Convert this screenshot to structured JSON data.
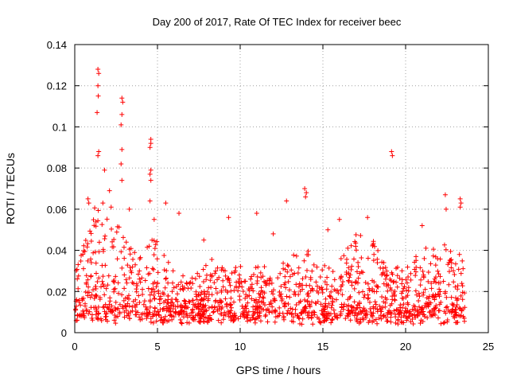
{
  "chart_data": {
    "type": "scatter",
    "title": "Day 200 of 2017, Rate Of TEC Index for receiver beec",
    "xlabel": "GPS time / hours",
    "ylabel": "ROTI / TECUs",
    "xlim": [
      0,
      25
    ],
    "ylim": [
      0,
      0.14
    ],
    "x_ticks": [
      0,
      5,
      10,
      15,
      20,
      25
    ],
    "y_ticks": [
      0,
      0.02,
      0.04,
      0.06,
      0.08,
      0.1,
      0.12,
      0.14
    ],
    "x_tick_labels": [
      "0",
      "5",
      "10",
      "15",
      "20",
      "25"
    ],
    "y_tick_labels": [
      "0",
      "0.02",
      "0.04",
      "0.06",
      "0.08",
      "0.1",
      "0.12",
      "0.14"
    ],
    "grid": true,
    "marker": "+",
    "color": "#ff0000",
    "series": [
      {
        "name": "ROTI",
        "points": [
          [
            1.4,
            0.128
          ],
          [
            1.45,
            0.126
          ],
          [
            1.4,
            0.12
          ],
          [
            1.42,
            0.115
          ],
          [
            1.35,
            0.107
          ],
          [
            1.45,
            0.088
          ],
          [
            1.4,
            0.086
          ],
          [
            1.8,
            0.079
          ],
          [
            2.85,
            0.114
          ],
          [
            2.9,
            0.112
          ],
          [
            2.85,
            0.106
          ],
          [
            2.8,
            0.101
          ],
          [
            2.85,
            0.089
          ],
          [
            2.8,
            0.082
          ],
          [
            2.85,
            0.074
          ],
          [
            4.6,
            0.094
          ],
          [
            4.6,
            0.092
          ],
          [
            4.55,
            0.09
          ],
          [
            4.6,
            0.079
          ],
          [
            4.55,
            0.077
          ],
          [
            4.6,
            0.074
          ],
          [
            4.55,
            0.064
          ],
          [
            4.8,
            0.055
          ],
          [
            19.15,
            0.088
          ],
          [
            19.2,
            0.086
          ],
          [
            22.4,
            0.067
          ],
          [
            22.45,
            0.06
          ],
          [
            23.3,
            0.065
          ],
          [
            23.35,
            0.063
          ],
          [
            23.3,
            0.061
          ],
          [
            13.9,
            0.07
          ],
          [
            14.0,
            0.068
          ],
          [
            13.95,
            0.066
          ],
          [
            12.8,
            0.064
          ],
          [
            11.0,
            0.058
          ],
          [
            0.8,
            0.065
          ],
          [
            0.85,
            0.063
          ],
          [
            1.7,
            0.063
          ],
          [
            2.1,
            0.069
          ],
          [
            2.2,
            0.061
          ],
          [
            3.3,
            0.06
          ],
          [
            5.5,
            0.063
          ],
          [
            6.3,
            0.058
          ],
          [
            9.3,
            0.056
          ],
          [
            16.0,
            0.055
          ],
          [
            17.7,
            0.056
          ],
          [
            21.0,
            0.052
          ],
          [
            7.8,
            0.045
          ],
          [
            12.0,
            0.048
          ],
          [
            15.3,
            0.05
          ]
        ]
      }
    ]
  }
}
